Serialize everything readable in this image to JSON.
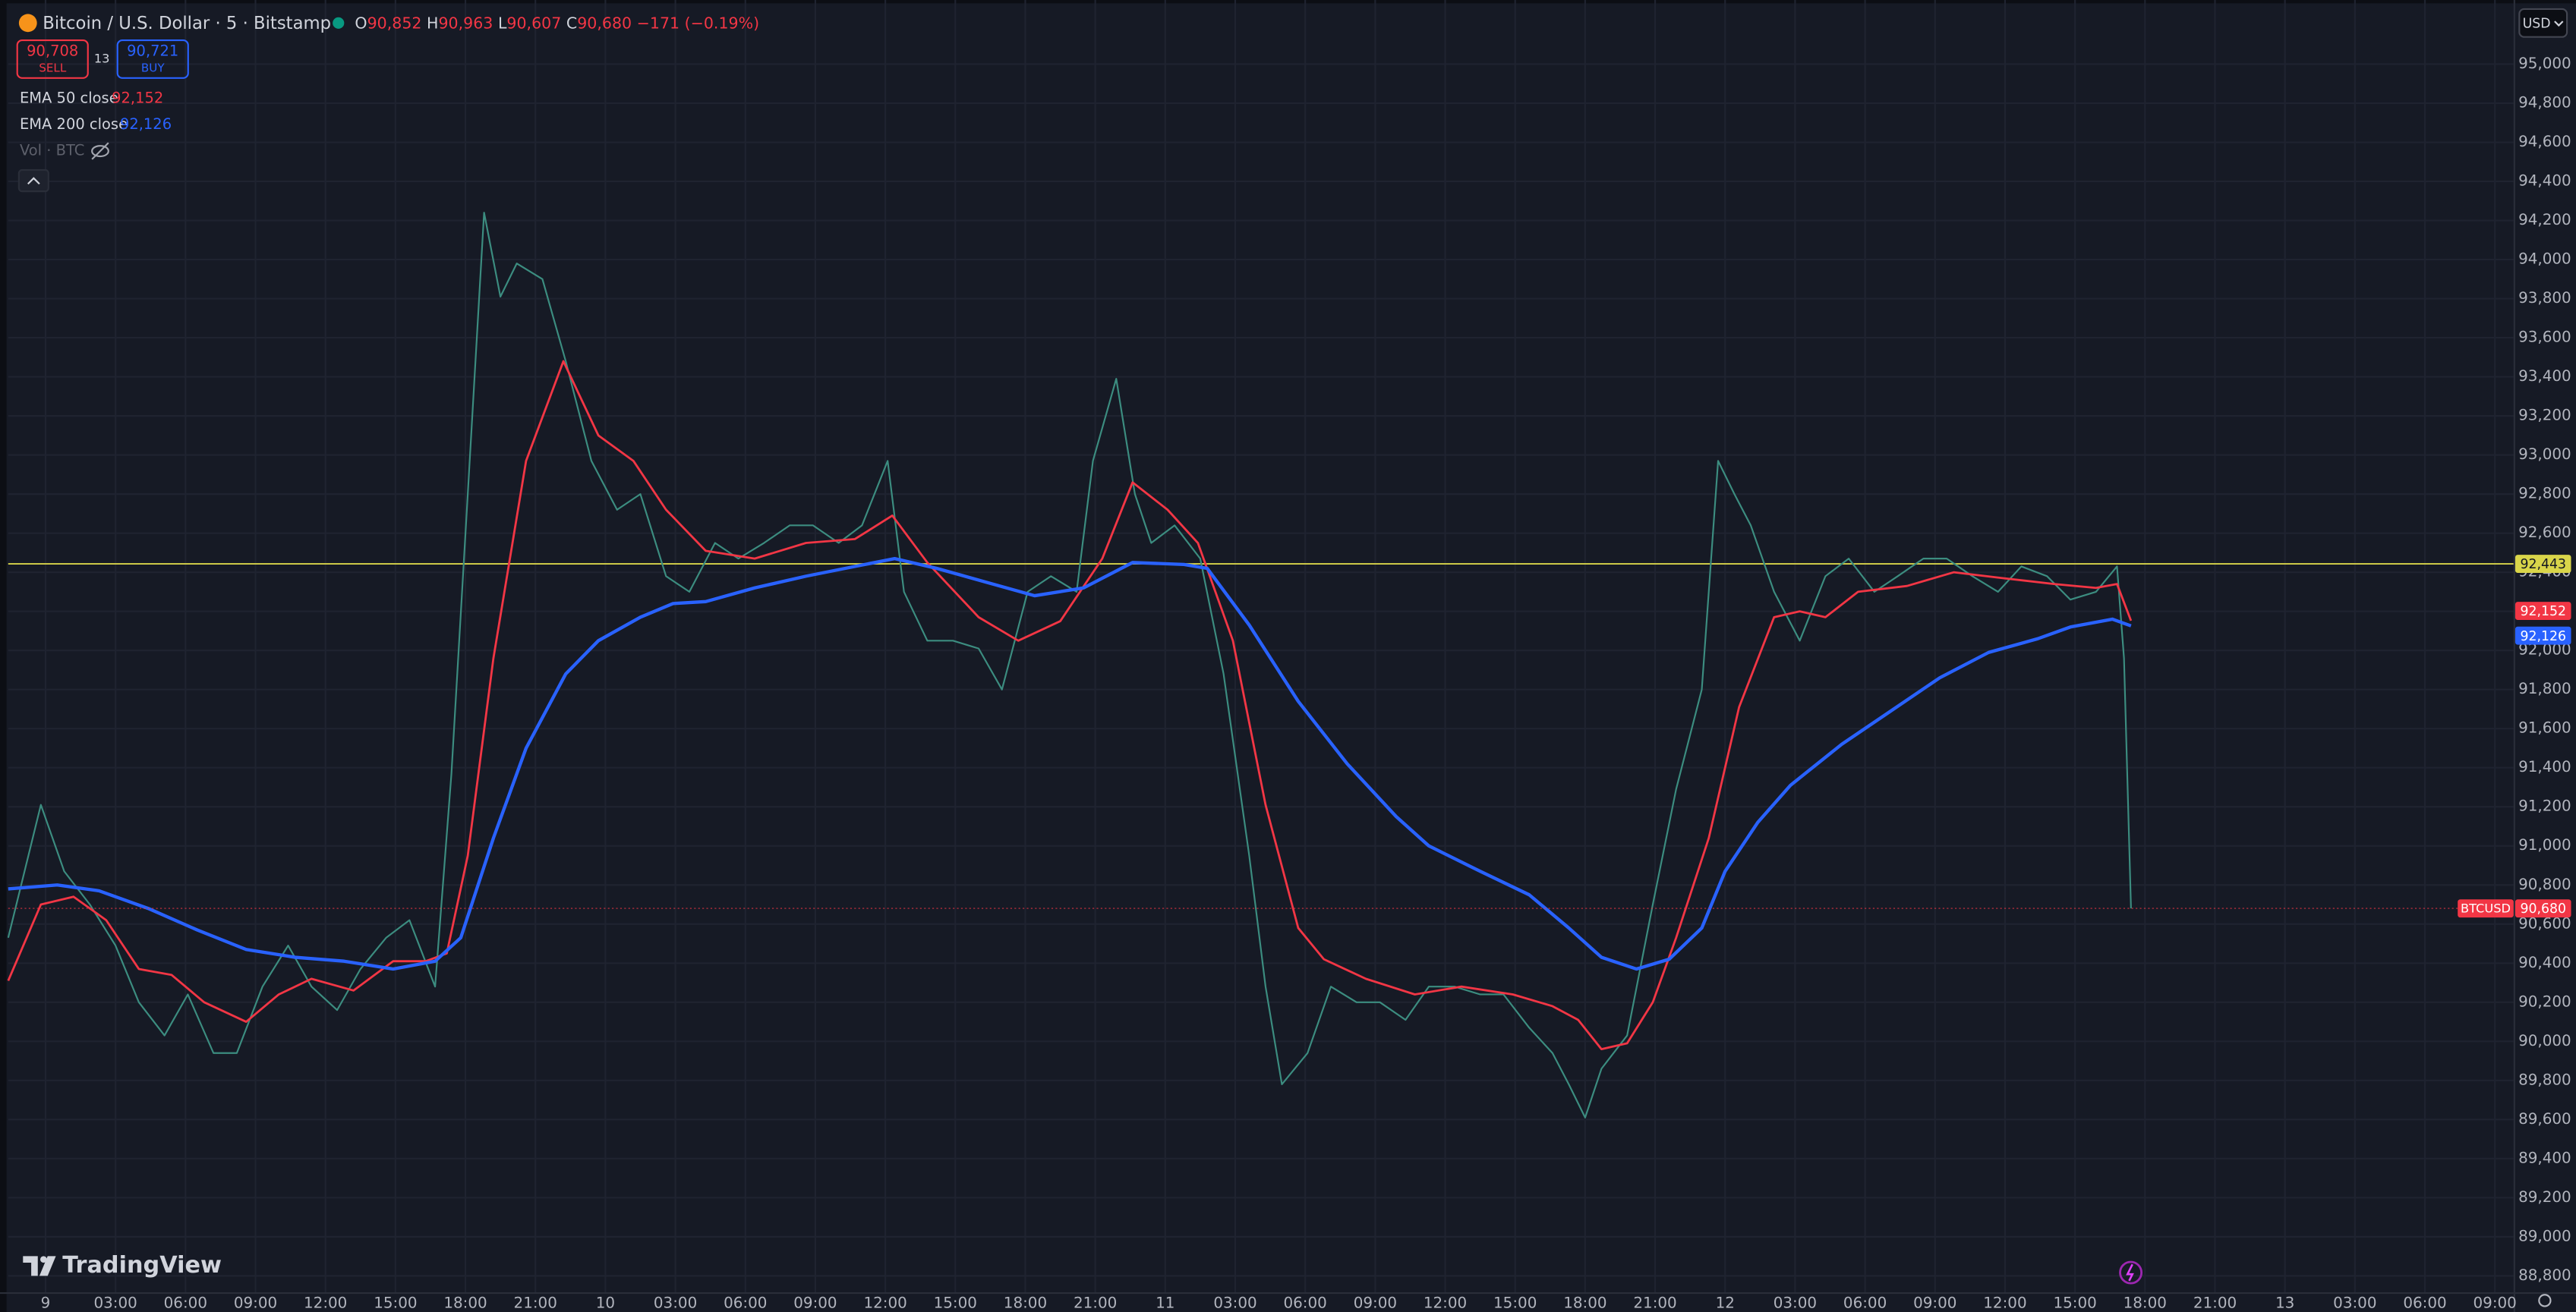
{
  "header": {
    "symbol": "Bitcoin / U.S. Dollar · 5 · Bitstamp",
    "ohlc": [
      {
        "key": "O",
        "value": "90,852"
      },
      {
        "key": "H",
        "value": "90,963"
      },
      {
        "key": "L",
        "value": "90,607"
      },
      {
        "key": "C",
        "value": "90,680"
      }
    ],
    "change": "−171 (−0.19%)",
    "sell": {
      "price": "90,708",
      "label": "SELL"
    },
    "spread": "13",
    "buy": {
      "price": "90,721",
      "label": "BUY"
    },
    "volume": "Vol · BTC",
    "currency": "USD",
    "branding": "TradingView"
  },
  "chart_data": {
    "type": "line",
    "grid": true,
    "xlim": [
      -1.6,
      105.8
    ],
    "ylim": [
      88716,
      95328
    ],
    "xticks": [
      {
        "value": 0,
        "label": "9"
      },
      {
        "value": 3,
        "label": "03:00"
      },
      {
        "value": 6,
        "label": "06:00"
      },
      {
        "value": 9,
        "label": "09:00"
      },
      {
        "value": 12,
        "label": "12:00"
      },
      {
        "value": 15,
        "label": "15:00"
      },
      {
        "value": 18,
        "label": "18:00"
      },
      {
        "value": 21,
        "label": "21:00"
      },
      {
        "value": 24,
        "label": "10"
      },
      {
        "value": 27,
        "label": "03:00"
      },
      {
        "value": 30,
        "label": "06:00"
      },
      {
        "value": 33,
        "label": "09:00"
      },
      {
        "value": 36,
        "label": "12:00"
      },
      {
        "value": 39,
        "label": "15:00"
      },
      {
        "value": 42,
        "label": "18:00"
      },
      {
        "value": 45,
        "label": "21:00"
      },
      {
        "value": 48,
        "label": "11"
      },
      {
        "value": 51,
        "label": "03:00"
      },
      {
        "value": 54,
        "label": "06:00"
      },
      {
        "value": 57,
        "label": "09:00"
      },
      {
        "value": 60,
        "label": "12:00"
      },
      {
        "value": 63,
        "label": "15:00"
      },
      {
        "value": 66,
        "label": "18:00"
      },
      {
        "value": 69,
        "label": "21:00"
      },
      {
        "value": 72,
        "label": "12"
      },
      {
        "value": 75,
        "label": "03:00"
      },
      {
        "value": 78,
        "label": "06:00"
      },
      {
        "value": 81,
        "label": "09:00"
      },
      {
        "value": 84,
        "label": "12:00"
      },
      {
        "value": 87,
        "label": "15:00"
      },
      {
        "value": 90,
        "label": "18:00"
      },
      {
        "value": 93,
        "label": "21:00"
      },
      {
        "value": 96,
        "label": "13"
      },
      {
        "value": 99,
        "label": "03:00"
      },
      {
        "value": 102,
        "label": "06:00"
      },
      {
        "value": 105,
        "label": "09:00"
      }
    ],
    "yticks": [
      {
        "value": 88800,
        "label": "88,800"
      },
      {
        "value": 89000,
        "label": "89,000"
      },
      {
        "value": 89200,
        "label": "89,200"
      },
      {
        "value": 89400,
        "label": "89,400"
      },
      {
        "value": 89600,
        "label": "89,600"
      },
      {
        "value": 89800,
        "label": "89,800"
      },
      {
        "value": 90000,
        "label": "90,000"
      },
      {
        "value": 90200,
        "label": "90,200"
      },
      {
        "value": 90400,
        "label": "90,400"
      },
      {
        "value": 90600,
        "label": "90,600"
      },
      {
        "value": 90800,
        "label": "90,800"
      },
      {
        "value": 91000,
        "label": "91,000"
      },
      {
        "value": 91200,
        "label": "91,200"
      },
      {
        "value": 91400,
        "label": "91,400"
      },
      {
        "value": 91600,
        "label": "91,600"
      },
      {
        "value": 91800,
        "label": "91,800"
      },
      {
        "value": 92000,
        "label": "92,000"
      },
      {
        "value": 92200,
        "label": "92,200"
      },
      {
        "value": 92400,
        "label": "92,400"
      },
      {
        "value": 92600,
        "label": "92,600"
      },
      {
        "value": 92800,
        "label": "92,800"
      },
      {
        "value": 93000,
        "label": "93,000"
      },
      {
        "value": 93200,
        "label": "93,200"
      },
      {
        "value": 93400,
        "label": "93,400"
      },
      {
        "value": 93600,
        "label": "93,600"
      },
      {
        "value": 93800,
        "label": "93,800"
      },
      {
        "value": 94000,
        "label": "94,000"
      },
      {
        "value": 94200,
        "label": "94,200"
      },
      {
        "value": 94400,
        "label": "94,400"
      },
      {
        "value": 94600,
        "label": "94,600"
      },
      {
        "value": 94800,
        "label": "94,800"
      },
      {
        "value": 95000,
        "label": "95,000"
      }
    ],
    "hlines": [
      {
        "value": 92443,
        "label": "92,443",
        "color": "#d9d54a"
      }
    ],
    "series": [
      {
        "name": "BTCUSD",
        "color": "#3c8d80",
        "last_label": "90,680",
        "x": [
          -1.6,
          -0.2,
          0.8,
          1.9,
          3.0,
          4.0,
          5.1,
          6.1,
          7.2,
          8.2,
          9.3,
          10.4,
          11.4,
          12.5,
          13.5,
          14.6,
          15.6,
          16.7,
          17.4,
          18.1,
          18.8,
          19.5,
          20.2,
          21.3,
          22.3,
          23.4,
          24.5,
          25.5,
          26.6,
          27.6,
          28.7,
          29.7,
          30.8,
          31.9,
          32.9,
          34.0,
          35.0,
          36.1,
          36.8,
          37.8,
          38.9,
          40.0,
          41.0,
          42.1,
          43.1,
          44.2,
          44.9,
          45.9,
          46.7,
          47.4,
          48.4,
          49.5,
          50.5,
          51.6,
          52.3,
          53.0,
          54.1,
          55.1,
          56.2,
          57.2,
          58.3,
          59.3,
          60.4,
          61.5,
          62.5,
          63.6,
          64.6,
          65.3,
          66.0,
          66.7,
          67.8,
          68.9,
          69.9,
          71.0,
          71.7,
          72.4,
          73.1,
          74.1,
          75.2,
          76.3,
          77.3,
          78.4,
          79.4,
          80.5,
          81.5,
          82.6,
          83.7,
          84.7,
          85.8,
          86.8,
          87.9,
          88.8,
          89.1,
          89.4
        ],
        "values": [
          90530,
          91210,
          90870,
          90700,
          90490,
          90200,
          90030,
          90240,
          89940,
          89940,
          90280,
          90490,
          90280,
          90160,
          90370,
          90530,
          90620,
          90280,
          91370,
          92800,
          94240,
          93810,
          93980,
          93900,
          93480,
          92970,
          92720,
          92800,
          92380,
          92300,
          92550,
          92470,
          92550,
          92640,
          92640,
          92550,
          92640,
          92970,
          92300,
          92050,
          92050,
          92010,
          91800,
          92300,
          92380,
          92300,
          92970,
          93390,
          92800,
          92550,
          92640,
          92470,
          91880,
          90950,
          90280,
          89780,
          89940,
          90280,
          90200,
          90200,
          90110,
          90280,
          90280,
          90240,
          90240,
          90070,
          89940,
          89780,
          89610,
          89860,
          90030,
          90700,
          91290,
          91800,
          92970,
          92800,
          92640,
          92300,
          92050,
          92380,
          92470,
          92300,
          92380,
          92470,
          92470,
          92380,
          92300,
          92430,
          92380,
          92260,
          92300,
          92430,
          91960,
          90680
        ]
      },
      {
        "name": "EMA 50 close",
        "color": "#f23645",
        "last_label": "92,152",
        "x": [
          -1.6,
          -0.2,
          1.2,
          2.6,
          4.0,
          5.4,
          6.8,
          8.6,
          10.0,
          11.4,
          13.2,
          14.9,
          16.3,
          17.2,
          18.1,
          19.2,
          20.6,
          22.2,
          23.7,
          25.2,
          26.6,
          28.3,
          30.4,
          32.6,
          34.7,
          36.3,
          37.8,
          40.0,
          41.7,
          43.5,
          45.3,
          46.6,
          48.1,
          49.4,
          50.9,
          52.3,
          53.7,
          54.8,
          56.6,
          58.7,
          60.7,
          62.9,
          64.6,
          65.7,
          66.7,
          67.8,
          68.9,
          69.9,
          71.3,
          72.6,
          74.1,
          75.2,
          76.3,
          77.7,
          79.8,
          81.8,
          83.9,
          86.1,
          87.9,
          88.8,
          89.4
        ],
        "values": [
          90310,
          90700,
          90740,
          90620,
          90370,
          90340,
          90200,
          90100,
          90240,
          90320,
          90260,
          90410,
          90410,
          90450,
          90950,
          91960,
          92970,
          93480,
          93100,
          92970,
          92720,
          92510,
          92470,
          92550,
          92570,
          92690,
          92450,
          92170,
          92050,
          92150,
          92470,
          92860,
          92720,
          92550,
          92050,
          91210,
          90580,
          90420,
          90320,
          90240,
          90280,
          90240,
          90180,
          90110,
          89960,
          89990,
          90200,
          90530,
          91040,
          91710,
          92170,
          92200,
          92170,
          92300,
          92330,
          92400,
          92370,
          92340,
          92320,
          92340,
          92152
        ]
      },
      {
        "name": "EMA 200 close",
        "color": "#2962ff",
        "last_label": "92,126",
        "x": [
          -1.6,
          0.5,
          2.3,
          4.4,
          6.5,
          8.6,
          10.7,
          12.8,
          14.9,
          16.7,
          17.8,
          19.2,
          20.6,
          22.3,
          23.7,
          25.5,
          26.9,
          28.3,
          30.4,
          32.6,
          34.7,
          36.4,
          38.2,
          40.3,
          42.4,
          44.5,
          46.6,
          48.8,
          49.8,
          51.6,
          53.7,
          55.8,
          57.9,
          59.3,
          61.5,
          63.6,
          65.3,
          66.7,
          68.2,
          69.6,
          71.0,
          72.0,
          73.4,
          74.8,
          77.0,
          79.1,
          81.2,
          83.3,
          85.4,
          86.8,
          88.6,
          89.4
        ],
        "values": [
          90780,
          90800,
          90770,
          90680,
          90570,
          90470,
          90430,
          90410,
          90370,
          90410,
          90530,
          91040,
          91500,
          91880,
          92050,
          92170,
          92240,
          92250,
          92320,
          92380,
          92430,
          92470,
          92420,
          92350,
          92280,
          92320,
          92450,
          92440,
          92420,
          92130,
          91740,
          91420,
          91150,
          91000,
          90870,
          90750,
          90580,
          90430,
          90370,
          90420,
          90580,
          90870,
          91120,
          91310,
          91520,
          91690,
          91860,
          91990,
          92060,
          92120,
          92160,
          92126
        ]
      }
    ]
  }
}
